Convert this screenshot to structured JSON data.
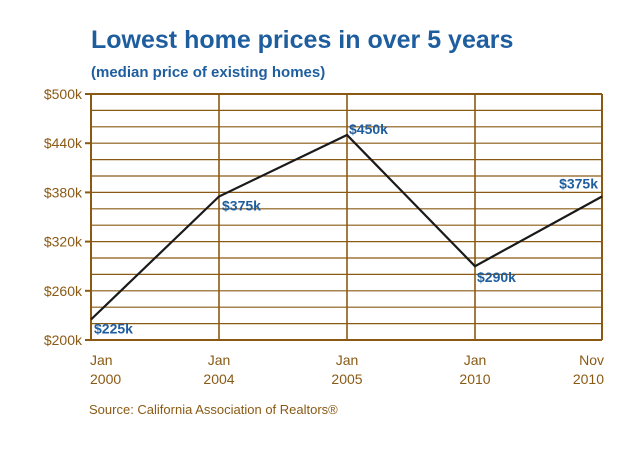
{
  "chart_data": {
    "type": "line",
    "title": "Lowest home prices in over 5 years",
    "subtitle": "(median price of existing homes)",
    "source": "Source: California Association of Realtors®",
    "xlabel": "",
    "ylabel": "",
    "categories": [
      "Jan\n2000",
      "Jan\n2004",
      "Jan\n2005",
      "Jan\n2010",
      "Nov\n2010"
    ],
    "values": [
      225,
      375,
      450,
      290,
      375
    ],
    "data_labels": [
      "$225k",
      "$375k",
      "$450k",
      "$290k",
      "$375k"
    ],
    "ylim": [
      200,
      500
    ],
    "yticks": [
      200,
      260,
      320,
      380,
      440,
      500
    ],
    "ytick_labels": [
      "$200k",
      "$260k",
      "$320k",
      "$380k",
      "$440k",
      "$500k"
    ],
    "grid": true,
    "colors": {
      "frame": "#8a5a14",
      "line": "#1a1a1a",
      "label": "#1f5e9e",
      "text": "#8a5a14"
    }
  }
}
